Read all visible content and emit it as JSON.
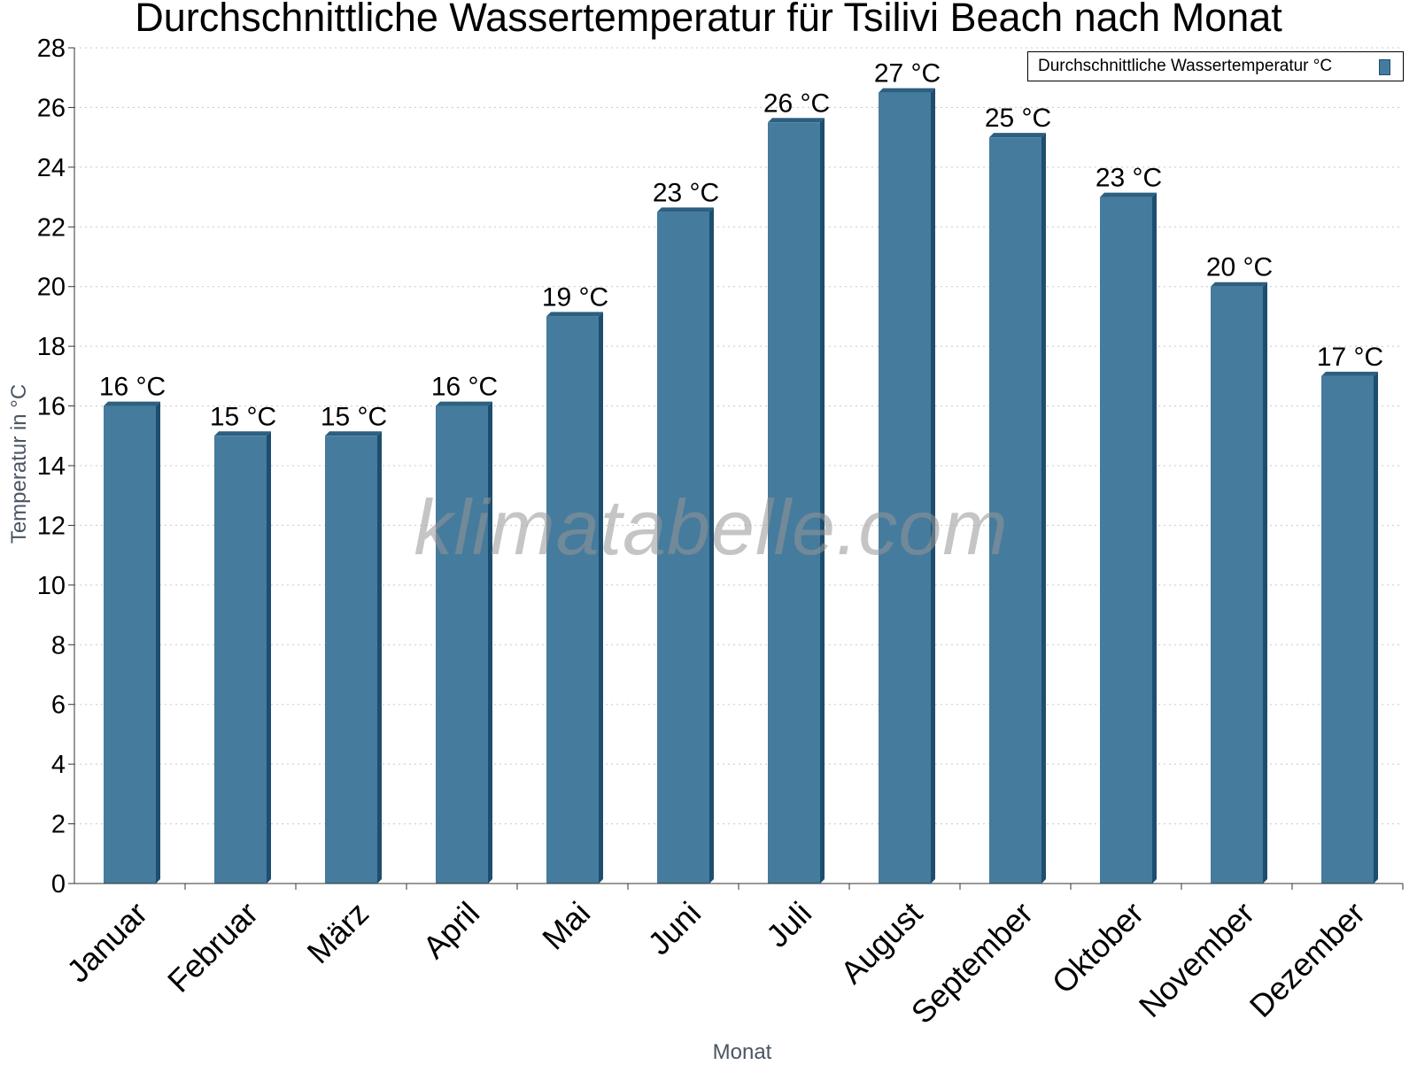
{
  "chart_data": {
    "type": "bar",
    "title": "Durchschnittliche Wassertemperatur für Tsilivi Beach nach Monat",
    "xlabel": "Monat",
    "ylabel": "Temperatur in °C",
    "categories": [
      "Januar",
      "Februar",
      "März",
      "April",
      "Mai",
      "Juni",
      "Juli",
      "August",
      "September",
      "Oktober",
      "November",
      "Dezember"
    ],
    "series": [
      {
        "name": "Durchschnittliche Wassertemperatur °C",
        "values": [
          16,
          15,
          15,
          16,
          19,
          22.5,
          25.5,
          26.5,
          25,
          23,
          20,
          17
        ],
        "labels": [
          "16 °C",
          "15 °C",
          "15 °C",
          "16 °C",
          "19 °C",
          "23 °C",
          "26 °C",
          "27 °C",
          "25 °C",
          "23 °C",
          "20 °C",
          "17 °C"
        ]
      }
    ],
    "ylim": [
      0,
      28
    ],
    "yticks": [
      0,
      2,
      4,
      6,
      8,
      10,
      12,
      14,
      16,
      18,
      20,
      22,
      24,
      26,
      28
    ],
    "grid": "horizontal dotted",
    "legend_position": "top-right",
    "colors": {
      "bar": "#457b9d",
      "bar_edge": "#1d4e6f",
      "bar_top": "#2c5f80"
    },
    "watermark": "klimatabelle.com"
  }
}
